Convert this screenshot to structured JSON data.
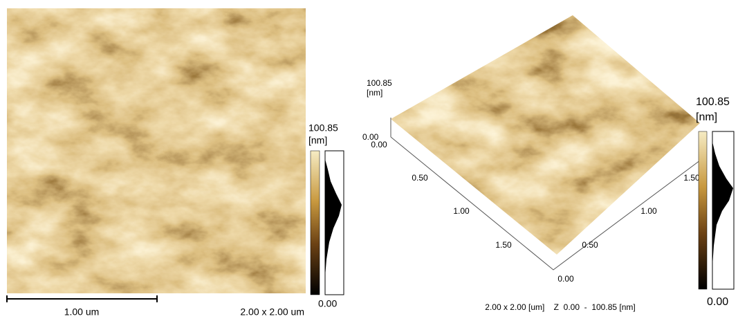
{
  "left_panel": {
    "colorbar": {
      "max": "100.85",
      "unit": "[nm]",
      "min": "0.00"
    },
    "scale_bar": "1.00 um",
    "scan_size": "2.00 x 2.00 um"
  },
  "right_panel": {
    "z_axis": {
      "max": "100.85",
      "unit": "[nm]",
      "min": "0.00"
    },
    "y_axis": {
      "ticks": [
        "0.00",
        "0.50",
        "1.00",
        "1.50"
      ]
    },
    "x_axis": {
      "ticks": [
        "0.00",
        "0.50",
        "1.00",
        "1.50"
      ]
    },
    "colorbar": {
      "max": "100.85",
      "unit": "[nm]",
      "min": "0.00"
    },
    "caption": "2.00 x 2.00 [um]    Z  0.00  -  100.85 [nm]"
  }
}
